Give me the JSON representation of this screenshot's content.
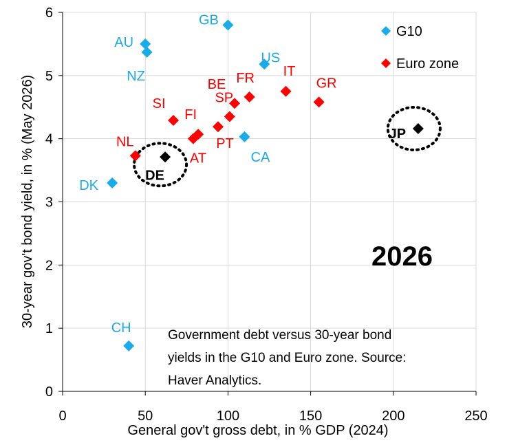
{
  "chart_data": {
    "type": "scatter",
    "title": "",
    "annotation_year": "2026",
    "note_lines": [
      "Government debt versus 30-year bond",
      "yields in the G10 and Euro zone. Source:",
      "Haver Analytics."
    ],
    "xlabel": "General gov't gross debt, in % GDP (2024)",
    "ylabel": "30-year gov't bond yield, in % (May 2026)",
    "xlim": [
      0,
      250
    ],
    "ylim": [
      0,
      6
    ],
    "xticks": [
      "0",
      "50",
      "100",
      "150",
      "200",
      "250"
    ],
    "yticks": [
      "0",
      "1",
      "2",
      "3",
      "4",
      "5",
      "6"
    ],
    "grid": true,
    "legend_position": "top-right",
    "colors": {
      "g10": "#1AABEB",
      "euro": "#FF0000",
      "highlight": "#000000"
    },
    "series": [
      {
        "name": "G10",
        "color": "#1AABEB",
        "points": [
          {
            "label": "GB",
            "x": 100,
            "y": 5.8
          },
          {
            "label": "AU",
            "x": 50,
            "y": 5.5
          },
          {
            "label": "NZ",
            "x": 51,
            "y": 5.37
          },
          {
            "label": "US",
            "x": 122,
            "y": 5.18
          },
          {
            "label": "CA",
            "x": 110,
            "y": 4.03
          },
          {
            "label": "DK",
            "x": 30,
            "y": 3.3
          },
          {
            "label": "CH",
            "x": 40,
            "y": 0.72
          }
        ]
      },
      {
        "name": "Euro zone",
        "color": "#FF0000",
        "points": [
          {
            "label": "GR",
            "x": 155,
            "y": 4.58
          },
          {
            "label": "IT",
            "x": 135,
            "y": 4.75
          },
          {
            "label": "FR",
            "x": 113,
            "y": 4.66
          },
          {
            "label": "BE",
            "x": 104,
            "y": 4.56
          },
          {
            "label": "SP",
            "x": 101,
            "y": 4.35
          },
          {
            "label": "PT",
            "x": 94,
            "y": 4.19
          },
          {
            "label": "SI",
            "x": 67,
            "y": 4.29
          },
          {
            "label": "FI",
            "x": 82,
            "y": 4.07
          },
          {
            "label": "AT",
            "x": 79,
            "y": 4.0
          },
          {
            "label": "NL",
            "x": 44,
            "y": 3.73
          }
        ]
      }
    ],
    "highlighted": [
      {
        "label": "DE",
        "x": 62,
        "y": 3.71
      },
      {
        "label": "JP",
        "x": 215,
        "y": 4.16
      }
    ]
  }
}
